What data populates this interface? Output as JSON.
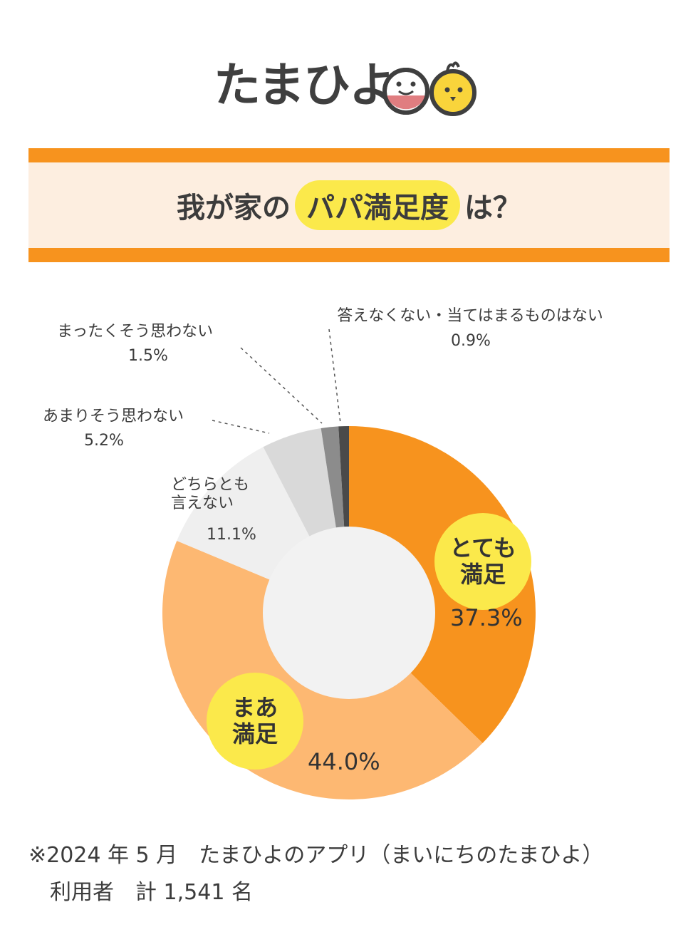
{
  "logo": {
    "text": "たまひよ"
  },
  "title": {
    "prefix": "我が家の",
    "highlight": "パパ満足度",
    "suffix": "は？"
  },
  "chart_data": {
    "type": "pie",
    "donut": true,
    "categories": [
      "とても満足",
      "まあ満足",
      "どちらとも言えない",
      "あまりそう思わない",
      "まったくそう思わない",
      "答えなくない・当てはまるものはない"
    ],
    "values": [
      37.3,
      44.0,
      11.1,
      5.2,
      1.5,
      0.9
    ],
    "colors": [
      "#f7931e",
      "#fdb872",
      "#efefef",
      "#d9d9d9",
      "#8c8c8c",
      "#4a4a4a"
    ],
    "labels": {
      "very": {
        "line1": "とても",
        "line2": "満足",
        "pct": "37.3%"
      },
      "fairly": {
        "line1": "まあ",
        "line2": "満足",
        "pct": "44.0%"
      },
      "neutral": {
        "line1": "どちらとも",
        "line2": "言えない",
        "pct": "11.1%"
      },
      "not_much": {
        "text": "あまりそう思わない",
        "pct": "5.2%"
      },
      "not_at_all": {
        "text": "まったくそう思わない",
        "pct": "1.5%"
      },
      "no_answer": {
        "text": "答えなくない・当てはまるものはない",
        "pct": "0.9%"
      }
    }
  },
  "note": {
    "line1": "※2024 年 5 月　たまひよのアプリ（まいにちのたまひよ）",
    "line2": "　利用者　計 1,541 名"
  }
}
